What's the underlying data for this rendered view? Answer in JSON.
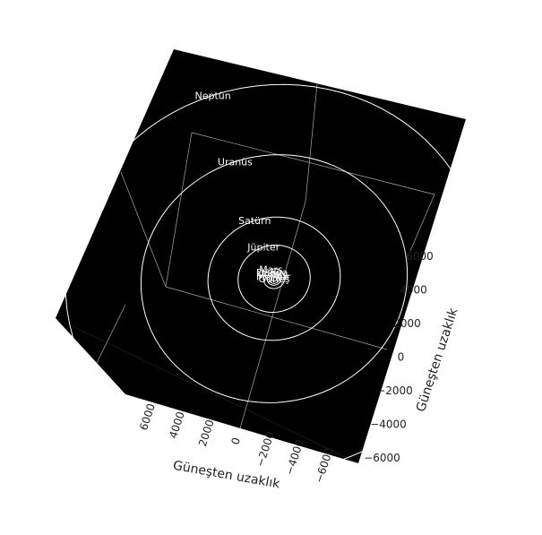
{
  "chart_data": {
    "type": "3d-scatter-orbits",
    "background_color": "#000000",
    "orbit_color": "#ffffff",
    "grid": true,
    "x_axis": {
      "label": "Güneşten uzaklık",
      "range": [
        -7000,
        7000
      ],
      "ticks": [
        {
          "value": 6000,
          "label": "6000"
        },
        {
          "value": 4000,
          "label": "4000"
        },
        {
          "value": 2000,
          "label": "2000"
        },
        {
          "value": 0,
          "label": "0"
        },
        {
          "value": -2000,
          "label": "−2000"
        },
        {
          "value": -4000,
          "label": "−4000"
        },
        {
          "value": -6000,
          "label": "−6000"
        }
      ]
    },
    "y_axis": {
      "label": "Güneşten uzaklık",
      "range": [
        -7000,
        7000
      ],
      "ticks": [
        {
          "value": 6000,
          "label": "6000"
        },
        {
          "value": 4000,
          "label": "4000"
        },
        {
          "value": 2000,
          "label": "2000"
        },
        {
          "value": 0,
          "label": "0"
        },
        {
          "value": -2000,
          "label": "−2000"
        },
        {
          "value": -4000,
          "label": "−4000"
        },
        {
          "value": -6000,
          "label": "−6000"
        }
      ]
    },
    "planets": [
      {
        "name": "Güneş",
        "distance": 0
      },
      {
        "name": "Merkür",
        "distance": 58
      },
      {
        "name": "Venüs",
        "distance": 108
      },
      {
        "name": "Dünya",
        "distance": 150
      },
      {
        "name": "Mars",
        "distance": 228
      },
      {
        "name": "Jüpiter",
        "distance": 778
      },
      {
        "name": "Satürn",
        "distance": 1427
      },
      {
        "name": "Uranüs",
        "distance": 2871
      },
      {
        "name": "Neptün",
        "distance": 4497
      }
    ]
  }
}
